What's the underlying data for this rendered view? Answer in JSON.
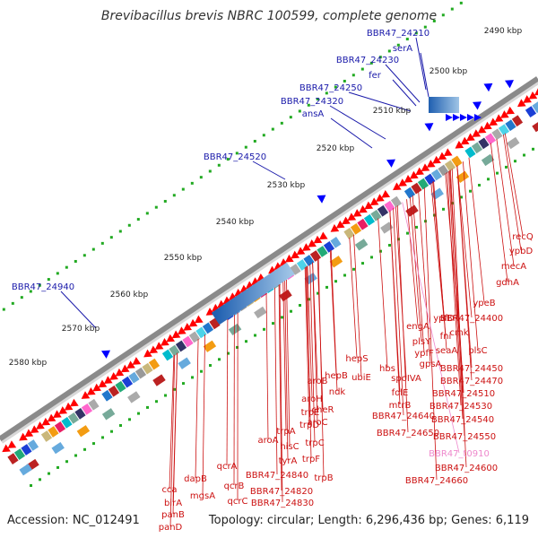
{
  "title": "Brevibacillus brevis NBRC 100599, complete genome",
  "footer": {
    "accession": "Accession: NC_012491",
    "summary": "Topology: circular; Length: 6,296,436 bp; Genes: 6,119"
  },
  "colors": {
    "forward_label": "#1a1aaa",
    "reverse_label": "#cc1111",
    "rna_label": "#ee88cc",
    "forward_arrow": "#0000ff",
    "reverse_arrow": "#ff0000",
    "ruler_dot": "#22aa22"
  },
  "ticks": [
    {
      "label": "2490 kbp"
    },
    {
      "label": "2500 kbp"
    },
    {
      "label": "2510 kbp"
    },
    {
      "label": "2520 kbp"
    },
    {
      "label": "2530 kbp"
    },
    {
      "label": "2540 kbp"
    },
    {
      "label": "2550 kbp"
    },
    {
      "label": "2560 kbp"
    },
    {
      "label": "2570 kbp"
    },
    {
      "label": "2580 kbp"
    }
  ],
  "forward_genes": [
    {
      "label": "BBR47_24210"
    },
    {
      "label": "serA"
    },
    {
      "label": "BBR47_24230"
    },
    {
      "label": "fer"
    },
    {
      "label": "BBR47_24250"
    },
    {
      "label": "BBR47_24320"
    },
    {
      "label": "ansA"
    },
    {
      "label": "BBR47_24520"
    },
    {
      "label": "BBR47_24940"
    }
  ],
  "reverse_genes": [
    {
      "label": "recQ"
    },
    {
      "label": "ypbD"
    },
    {
      "label": "mecA"
    },
    {
      "label": "gdhA"
    },
    {
      "label": "ypeB"
    },
    {
      "label": "BBR47_24400"
    },
    {
      "label": "ypfD"
    },
    {
      "label": "cmk"
    },
    {
      "label": "engA"
    },
    {
      "label": "fni"
    },
    {
      "label": "plsC"
    },
    {
      "label": "plsY"
    },
    {
      "label": "seaA"
    },
    {
      "label": "ypfF"
    },
    {
      "label": "gpsA"
    },
    {
      "label": "BBR47_24450"
    },
    {
      "label": "hepS"
    },
    {
      "label": "BBR47_24470"
    },
    {
      "label": "hbs"
    },
    {
      "label": "spoIVA"
    },
    {
      "label": "ubiE"
    },
    {
      "label": "BBR47_24510"
    },
    {
      "label": "hepB"
    },
    {
      "label": "folE"
    },
    {
      "label": "BBR47_24530"
    },
    {
      "label": "mtrB"
    },
    {
      "label": "aroB"
    },
    {
      "label": "ndk"
    },
    {
      "label": "BBR47_24540"
    },
    {
      "label": "aroH"
    },
    {
      "label": "cheR"
    },
    {
      "label": "BBR47_24640"
    },
    {
      "label": "trpE"
    },
    {
      "label": "aroC"
    },
    {
      "label": "BBR47_24650"
    },
    {
      "label": "BBR47_24550"
    },
    {
      "label": "trpD"
    },
    {
      "label": "trpA"
    },
    {
      "label": "aroA"
    },
    {
      "label": "trpC"
    },
    {
      "label": "hisC"
    },
    {
      "label": "trpF"
    },
    {
      "label": "tyrA"
    },
    {
      "label": "BBR47_24600"
    },
    {
      "label": "qcrA"
    },
    {
      "label": "BBR47_24840"
    },
    {
      "label": "trpB"
    },
    {
      "label": "dapB"
    },
    {
      "label": "qcrB"
    },
    {
      "label": "BBR47_24660"
    },
    {
      "label": "qcrC"
    },
    {
      "label": "BBR47_24820"
    },
    {
      "label": "mgsA"
    },
    {
      "label": "BBR47_24830"
    },
    {
      "label": "cca"
    },
    {
      "label": "birA"
    },
    {
      "label": "panB"
    },
    {
      "label": "panD"
    }
  ],
  "rna_genes": [
    {
      "label": "BBR47_t0910"
    }
  ]
}
